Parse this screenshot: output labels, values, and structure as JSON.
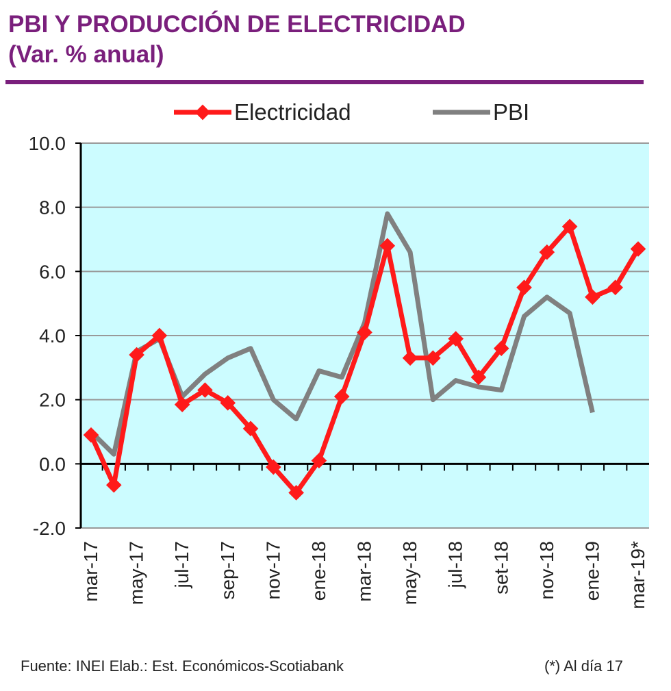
{
  "title_line1": "PBI Y PRODUCCIÓN DE ELECTRICIDAD",
  "title_line2": "(Var. % anual)",
  "colors": {
    "title": "#7a1f7c",
    "electricidad": "#ff1a1a",
    "pbi": "#808080",
    "plot_bg": "#ccfcff"
  },
  "source": "Fuente: INEI  Elab.: Est. Económicos-Scotiabank",
  "note": "(*) Al día 17",
  "chart_data": {
    "type": "line",
    "title": "PBI Y PRODUCCIÓN DE ELECTRICIDAD (Var. % anual)",
    "ylim": [
      -2,
      10
    ],
    "yticks": [
      "10.0",
      "8.0",
      "6.0",
      "4.0",
      "2.0",
      "0.0",
      "-2.0"
    ],
    "ytick_values": [
      10,
      8,
      6,
      4,
      2,
      0,
      -2
    ],
    "grid": true,
    "legend_position": "top",
    "x": [
      "mar-17",
      "abr-17",
      "may-17",
      "jun-17",
      "jul-17",
      "ago-17",
      "sep-17",
      "oct-17",
      "nov-17",
      "dic-17",
      "ene-18",
      "feb-18",
      "mar-18",
      "abr-18",
      "may-18",
      "jun-18",
      "jul-18",
      "ago-18",
      "set-18",
      "oct-18",
      "nov-18",
      "dic-18",
      "ene-19",
      "feb-19",
      "mar-19*"
    ],
    "xtick_labels": [
      "mar-17",
      "may-17",
      "jul-17",
      "sep-17",
      "nov-17",
      "ene-18",
      "mar-18",
      "may-18",
      "jul-18",
      "set-18",
      "nov-18",
      "ene-19",
      "mar-19*"
    ],
    "series": [
      {
        "name": "Electricidad",
        "values": [
          0.9,
          -0.66,
          3.4,
          4.0,
          1.85,
          2.3,
          1.9,
          1.1,
          -0.1,
          -0.9,
          0.1,
          2.1,
          4.1,
          6.8,
          3.3,
          3.3,
          3.9,
          2.7,
          3.6,
          5.5,
          6.6,
          7.4,
          5.2,
          5.5,
          6.7
        ]
      },
      {
        "name": "PBI",
        "values": [
          1.0,
          0.3,
          3.5,
          3.9,
          2.1,
          2.8,
          3.3,
          3.6,
          2.0,
          1.4,
          2.9,
          2.7,
          4.4,
          7.8,
          6.6,
          2.0,
          2.6,
          2.4,
          2.3,
          4.6,
          5.2,
          4.7,
          1.6,
          null,
          null
        ]
      }
    ]
  }
}
